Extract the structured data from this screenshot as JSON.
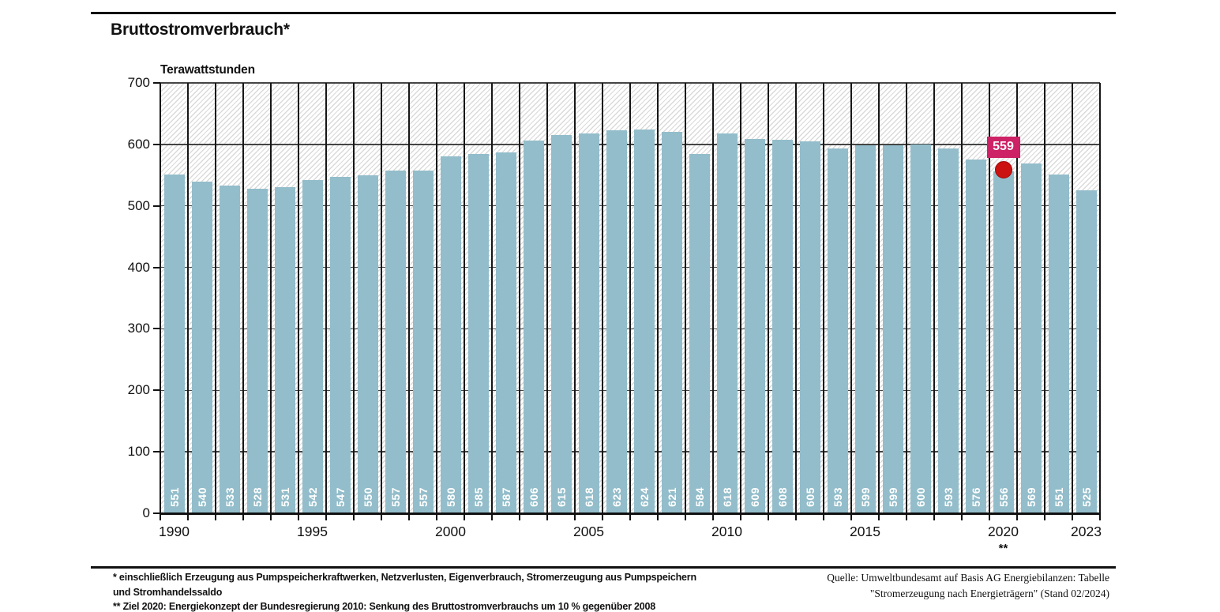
{
  "header": {
    "title": "Bruttostromverbrauch*"
  },
  "chart_data": {
    "type": "bar",
    "title": "Bruttostromverbrauch*",
    "unit_label": "Terawattstunden",
    "x": [
      1990,
      1991,
      1992,
      1993,
      1994,
      1995,
      1996,
      1997,
      1998,
      1999,
      2000,
      2001,
      2002,
      2003,
      2004,
      2005,
      2006,
      2007,
      2008,
      2009,
      2010,
      2011,
      2012,
      2013,
      2014,
      2015,
      2016,
      2017,
      2018,
      2019,
      2020,
      2021,
      2022,
      2023
    ],
    "values": [
      551,
      540,
      533,
      528,
      531,
      542,
      547,
      550,
      557,
      557,
      580,
      585,
      587,
      606,
      615,
      618,
      623,
      624,
      621,
      584,
      618,
      609,
      608,
      605,
      593,
      599,
      599,
      600,
      593,
      576,
      556,
      569,
      551,
      525
    ],
    "ylim": [
      0,
      700
    ],
    "ytick_step": 100,
    "xticks": [
      1990,
      1995,
      2000,
      2005,
      2010,
      2015,
      2020,
      2023
    ],
    "grid": true,
    "legend": "none",
    "colors": {
      "bar": "#93bdca",
      "hatch": "#dadada",
      "target_box": "#cd2265",
      "target_dot": "#cc1111"
    },
    "target": {
      "year": 2020,
      "value": 559,
      "label": "559",
      "footnote_marker": "**"
    }
  },
  "footnotes": {
    "line1": "* einschließlich Erzeugung aus Pumpspeicherkraftwerken, Netzverlusten, Eigenverbrauch, Stromerzeugung aus Pumpspeichern und Stromhandelssaldo",
    "line2": "** Ziel 2020: Energiekonzept der Bundesregierung 2010: Senkung des Bruttostromverbrauchs um 10 % gegenüber 2008"
  },
  "source": {
    "line1": "Quelle: Umweltbundesamt auf Basis AG Energiebilanzen: Tabelle",
    "line2": "\"Stromerzeugung nach Energieträgern\" (Stand 02/2024)"
  }
}
